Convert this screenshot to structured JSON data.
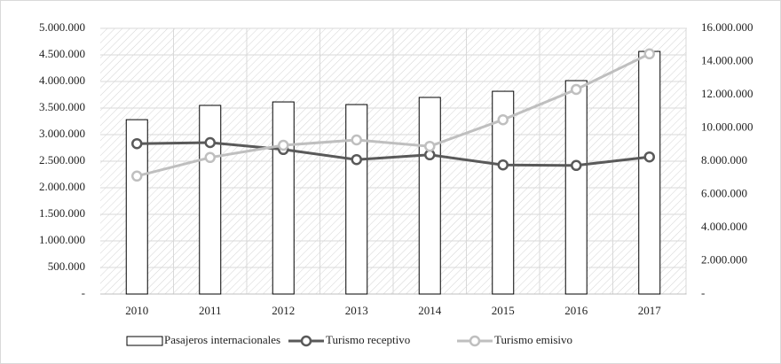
{
  "chart_data": {
    "type": "bar_line",
    "categories": [
      "2010",
      "2011",
      "2012",
      "2013",
      "2014",
      "2015",
      "2016",
      "2017"
    ],
    "series": [
      {
        "name": "Pasajeros internacionales",
        "type": "bar",
        "axis": "y2",
        "color": "#ffffff",
        "values": [
          10500000,
          11360000,
          11570000,
          11410000,
          11840000,
          12210000,
          12850000,
          14610000
        ]
      },
      {
        "name": "Turismo receptivo",
        "type": "line",
        "color": "#595959",
        "values": [
          2830000,
          2850000,
          2720000,
          2530000,
          2620000,
          2430000,
          2420000,
          2580000
        ]
      },
      {
        "name": "Turismo emisivo",
        "type": "line",
        "color": "#bfbfbf",
        "values": [
          2220000,
          2570000,
          2800000,
          2900000,
          2780000,
          3280000,
          3850000,
          4520000
        ]
      }
    ],
    "ylim": [
      0,
      5000000
    ],
    "yticks": [
      {
        "value": 0,
        "label": "-"
      },
      {
        "value": 500000,
        "label": "500.000"
      },
      {
        "value": 1000000,
        "label": "1.000.000"
      },
      {
        "value": 1500000,
        "label": "1.500.000"
      },
      {
        "value": 2000000,
        "label": "2.000.000"
      },
      {
        "value": 2500000,
        "label": "2.500.000"
      },
      {
        "value": 3000000,
        "label": "3.000.000"
      },
      {
        "value": 3500000,
        "label": "3.500.000"
      },
      {
        "value": 4000000,
        "label": "4.000.000"
      },
      {
        "value": 4500000,
        "label": "4.500.000"
      },
      {
        "value": 5000000,
        "label": "5.000.000"
      }
    ],
    "y2lim": [
      0,
      16000000
    ],
    "y2ticks": [
      {
        "value": 0,
        "label": "-"
      },
      {
        "value": 2000000,
        "label": "2.000.000"
      },
      {
        "value": 4000000,
        "label": "4.000.000"
      },
      {
        "value": 6000000,
        "label": "6.000.000"
      },
      {
        "value": 8000000,
        "label": "8.000.000"
      },
      {
        "value": 10000000,
        "label": "10.000.000"
      },
      {
        "value": 12000000,
        "label": "12.000.000"
      },
      {
        "value": 14000000,
        "label": "14.000.000"
      },
      {
        "value": 16000000,
        "label": "16.000.000"
      }
    ],
    "grid": true,
    "legend": "bottom"
  }
}
